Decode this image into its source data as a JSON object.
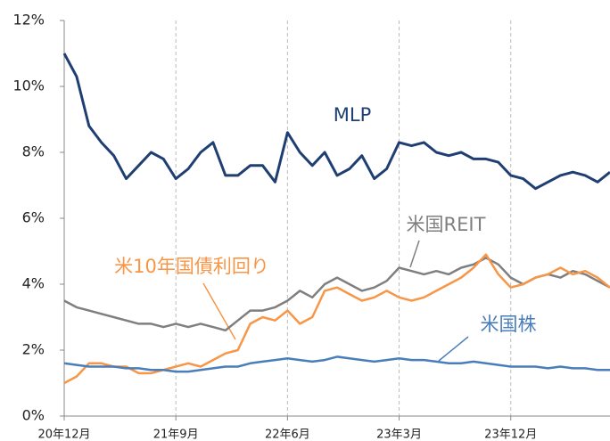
{
  "chart_data": {
    "type": "line",
    "categories": [
      "20年12月",
      null,
      null,
      null,
      null,
      null,
      null,
      null,
      null,
      "21年9月",
      null,
      null,
      null,
      null,
      null,
      null,
      null,
      null,
      "22年6月",
      null,
      null,
      null,
      null,
      null,
      null,
      null,
      null,
      "23年3月",
      null,
      null,
      null,
      null,
      null,
      null,
      null,
      null,
      "23年12月",
      null,
      null,
      null,
      null,
      null,
      null,
      null,
      null
    ],
    "ylim": [
      0,
      12
    ],
    "yticks": [
      {
        "value": 0,
        "label": "0%"
      },
      {
        "value": 2,
        "label": "2%"
      },
      {
        "value": 4,
        "label": "4%"
      },
      {
        "value": 6,
        "label": "6%"
      },
      {
        "value": 8,
        "label": "8%"
      },
      {
        "value": 10,
        "label": "10%"
      },
      {
        "value": 12,
        "label": "12%"
      }
    ],
    "grid": true,
    "series": [
      {
        "name": "MLP",
        "color": "#1f3f73",
        "values": [
          11.0,
          10.3,
          8.8,
          8.3,
          7.9,
          7.2,
          7.6,
          8.0,
          7.8,
          7.2,
          7.5,
          8.0,
          8.3,
          7.3,
          7.3,
          7.6,
          7.6,
          7.1,
          8.6,
          8.0,
          7.6,
          8.0,
          7.3,
          7.5,
          7.9,
          7.2,
          7.5,
          8.3,
          8.2,
          8.3,
          8.0,
          7.9,
          8.0,
          7.8,
          7.8,
          7.7,
          7.3,
          7.2,
          6.9,
          7.1,
          7.3,
          7.4,
          7.3,
          7.1,
          7.4
        ]
      },
      {
        "name": "米国REIT",
        "color": "#7f7f7f",
        "values": [
          3.5,
          3.3,
          3.2,
          3.1,
          3.0,
          2.9,
          2.8,
          2.8,
          2.7,
          2.8,
          2.7,
          2.8,
          2.7,
          2.6,
          2.9,
          3.2,
          3.2,
          3.3,
          3.5,
          3.8,
          3.6,
          4.0,
          4.2,
          4.0,
          3.8,
          3.9,
          4.1,
          4.5,
          4.4,
          4.3,
          4.4,
          4.3,
          4.5,
          4.6,
          4.8,
          4.6,
          4.2,
          4.0,
          4.2,
          4.3,
          4.2,
          4.4,
          4.3,
          4.1,
          3.9
        ]
      },
      {
        "name": "米10年国債利回り",
        "color": "#f79646",
        "values": [
          1.0,
          1.2,
          1.6,
          1.6,
          1.5,
          1.5,
          1.3,
          1.3,
          1.4,
          1.5,
          1.6,
          1.5,
          1.7,
          1.9,
          2.0,
          2.8,
          3.0,
          2.9,
          3.2,
          2.8,
          3.0,
          3.8,
          3.9,
          3.7,
          3.5,
          3.6,
          3.8,
          3.6,
          3.5,
          3.6,
          3.8,
          4.0,
          4.2,
          4.5,
          4.9,
          4.3,
          3.9,
          4.0,
          4.2,
          4.3,
          4.5,
          4.3,
          4.4,
          4.2,
          3.9
        ]
      },
      {
        "name": "米国株",
        "color": "#4a7ebb",
        "values": [
          1.6,
          1.55,
          1.5,
          1.5,
          1.5,
          1.45,
          1.45,
          1.4,
          1.4,
          1.35,
          1.35,
          1.4,
          1.45,
          1.5,
          1.5,
          1.6,
          1.65,
          1.7,
          1.75,
          1.7,
          1.65,
          1.7,
          1.8,
          1.75,
          1.7,
          1.65,
          1.7,
          1.75,
          1.7,
          1.7,
          1.65,
          1.6,
          1.6,
          1.65,
          1.6,
          1.55,
          1.5,
          1.5,
          1.5,
          1.45,
          1.5,
          1.45,
          1.45,
          1.4,
          1.4
        ]
      }
    ]
  }
}
